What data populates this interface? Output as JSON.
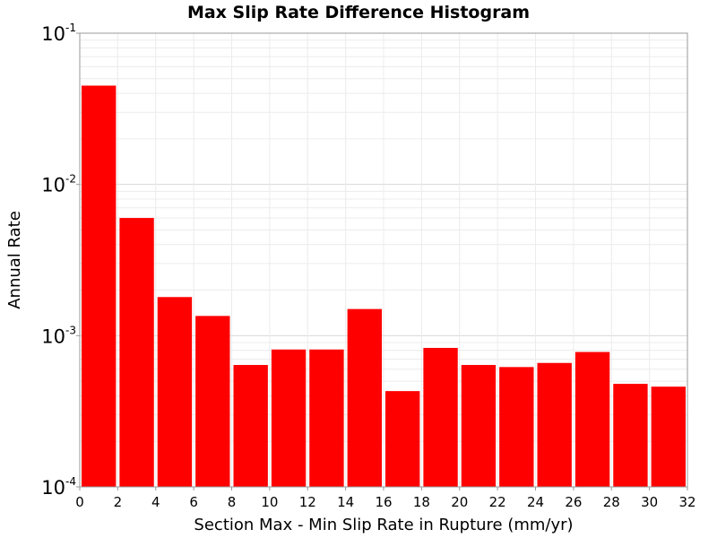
{
  "chart_data": {
    "type": "bar",
    "title": "Max Slip Rate Difference Histogram",
    "xlabel": "Section Max - Min Slip Rate in Rupture (mm/yr)",
    "ylabel": "Annual Rate",
    "x_ticks": [
      "0",
      "2",
      "4",
      "6",
      "8",
      "10",
      "12",
      "14",
      "16",
      "18",
      "20",
      "22",
      "24",
      "26",
      "28",
      "30",
      "32"
    ],
    "y_ticks": [
      {
        "base": "10",
        "exp": "-1",
        "value": 0.1
      },
      {
        "base": "10",
        "exp": "-2",
        "value": 0.01
      },
      {
        "base": "10",
        "exp": "-3",
        "value": 0.001
      },
      {
        "base": "10",
        "exp": "-4",
        "value": 0.0001
      }
    ],
    "xlim": [
      0,
      32
    ],
    "ylim": [
      0.0001,
      0.1
    ],
    "y_scale": "log",
    "grid": true,
    "bin_width": 2,
    "bar_color": "#ff0000",
    "bars": [
      {
        "x": 1,
        "value": 0.045
      },
      {
        "x": 3,
        "value": 0.006
      },
      {
        "x": 5,
        "value": 0.0018
      },
      {
        "x": 7,
        "value": 0.00135
      },
      {
        "x": 9,
        "value": 0.00064
      },
      {
        "x": 11,
        "value": 0.00081
      },
      {
        "x": 13,
        "value": 0.00081
      },
      {
        "x": 15,
        "value": 0.0015
      },
      {
        "x": 17,
        "value": 0.00043
      },
      {
        "x": 19,
        "value": 0.00083
      },
      {
        "x": 21,
        "value": 0.00064
      },
      {
        "x": 23,
        "value": 0.00062
      },
      {
        "x": 25,
        "value": 0.00066
      },
      {
        "x": 27,
        "value": 0.00078
      },
      {
        "x": 29,
        "value": 0.00048
      },
      {
        "x": 31,
        "value": 0.00046
      }
    ]
  }
}
